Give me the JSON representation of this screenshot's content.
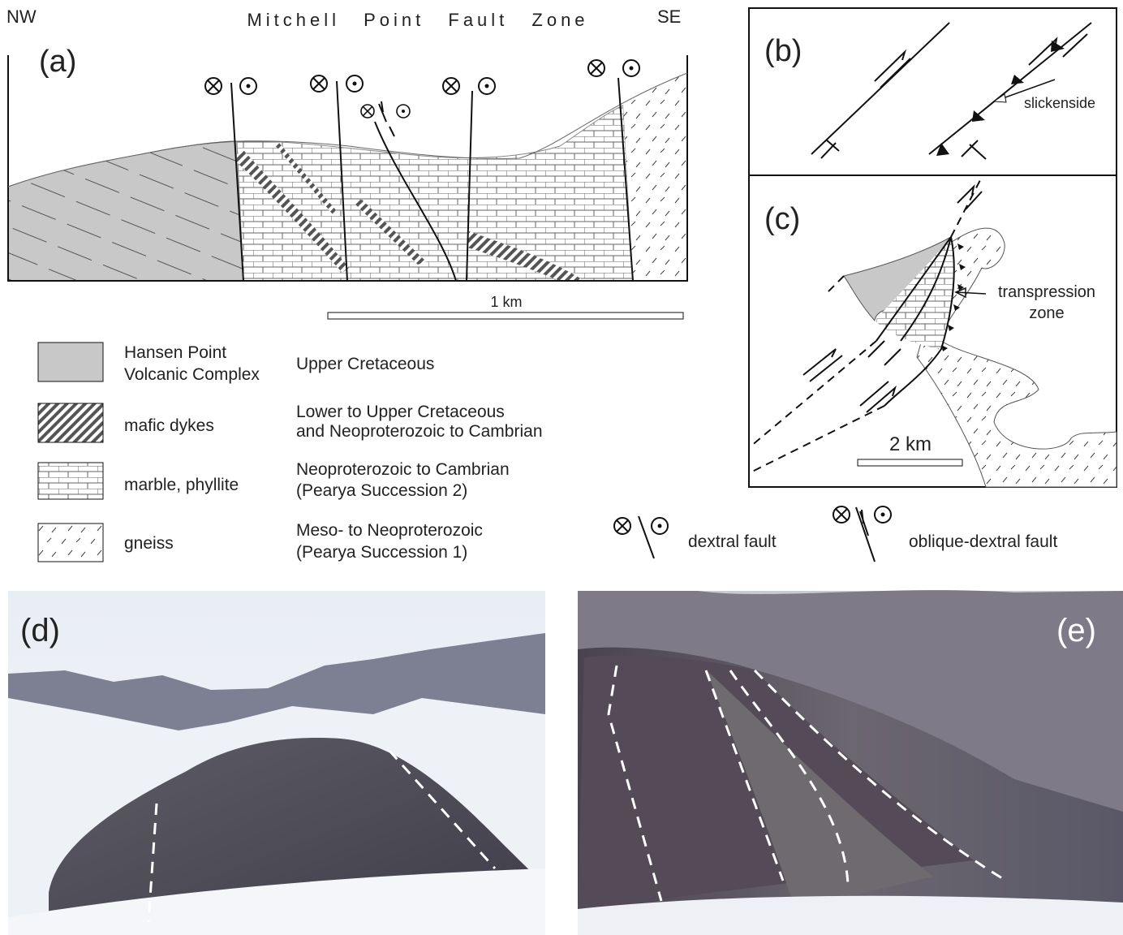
{
  "panel_a": {
    "label": "(a)",
    "left": "NW",
    "right": "SE",
    "title": "Mitchell Point Fault Zone",
    "scale": "1 km"
  },
  "legend": {
    "units": [
      {
        "name": [
          "Hansen Point",
          "Volcanic Complex"
        ],
        "age": [
          "Upper Cretaceous"
        ]
      },
      {
        "name": [
          "mafic dykes"
        ],
        "age": [
          "Lower to Upper Cretaceous",
          "and Neoproterozoic to Cambrian"
        ]
      },
      {
        "name": [
          "marble, phyllite"
        ],
        "age": [
          "Neoproterozoic to Cambrian",
          "(Pearya Succession 2)"
        ]
      },
      {
        "name": [
          "gneiss"
        ],
        "age": [
          "Meso- to Neoproterozoic",
          "(Pearya Succession 1)"
        ]
      }
    ],
    "symbols": [
      "dextral fault",
      "oblique-dextral fault"
    ]
  },
  "panel_b": {
    "label": "(b)",
    "annotation": "slickenside"
  },
  "panel_c": {
    "label": "(c)",
    "annotation": [
      "transpression",
      "zone"
    ],
    "scale": "2 km"
  },
  "panel_d": {
    "label": "(d)"
  },
  "panel_e": {
    "label": "(e)"
  }
}
